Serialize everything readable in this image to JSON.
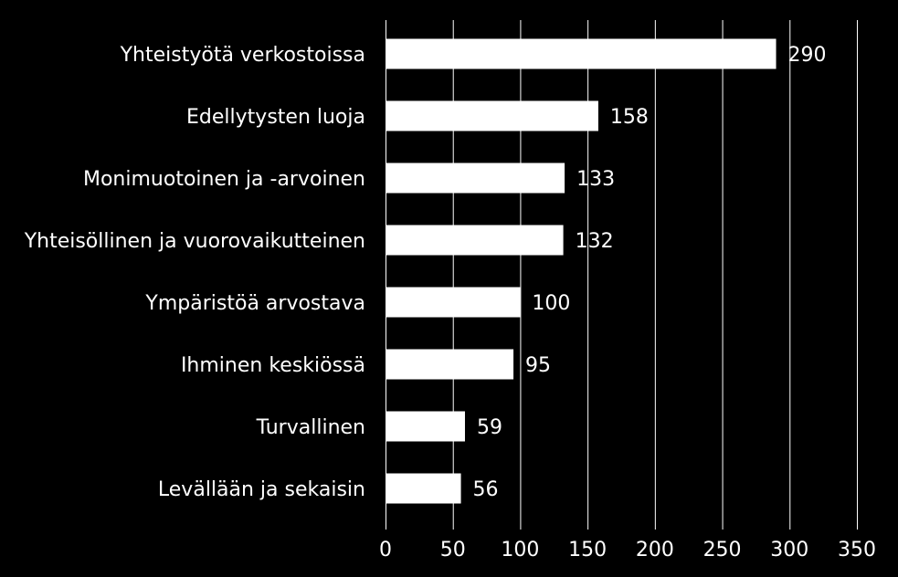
{
  "chart_data": {
    "type": "bar",
    "orientation": "horizontal",
    "categories": [
      "Yhteistyötä verkostoissa",
      "Edellytysten luoja",
      "Monimuotoinen ja -arvoinen",
      "Yhteisöllinen ja vuorovaikutteinen",
      "Ympäristöä arvostava",
      "Ihminen keskiössä",
      "Turvallinen",
      "Levällään ja sekaisin"
    ],
    "values": [
      290,
      158,
      133,
      132,
      100,
      95,
      59,
      56
    ],
    "data_labels": [
      "290",
      "158",
      "133",
      "132",
      "100",
      "95",
      "59",
      "56"
    ],
    "xlim": [
      0,
      350
    ],
    "x_ticks": [
      0,
      50,
      100,
      150,
      200,
      250,
      300,
      350
    ],
    "x_tick_labels": [
      "0",
      "50",
      "100",
      "150",
      "200",
      "250",
      "300",
      "350"
    ],
    "grid": "vertical",
    "legend": "none",
    "colors": {
      "background": "#000000",
      "bar": "#ffffff",
      "text": "#ffffff",
      "grid": "#ffffff"
    }
  }
}
